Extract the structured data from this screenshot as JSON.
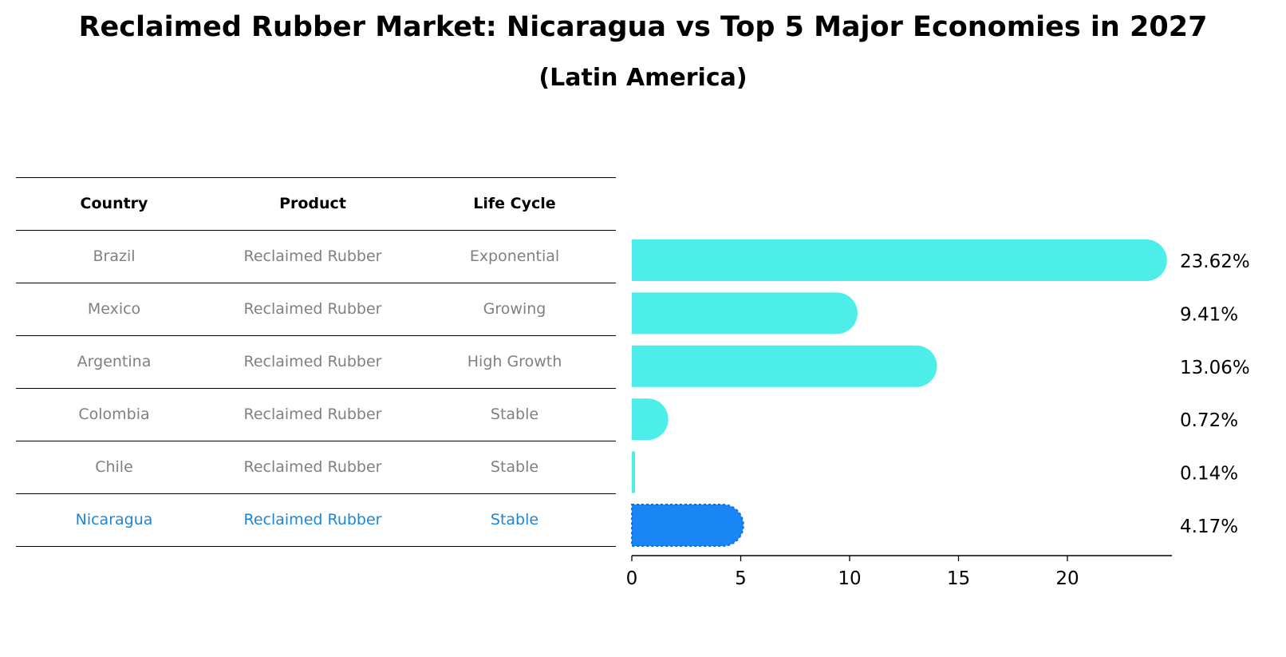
{
  "title": "Reclaimed Rubber Market: Nicaragua vs Top 5 Major Economies in 2027",
  "subtitle": "(Latin America)",
  "table": {
    "headers": [
      "Country",
      "Product",
      "Life Cycle"
    ],
    "rows": [
      [
        "Brazil",
        "Reclaimed Rubber",
        "Exponential"
      ],
      [
        "Mexico",
        "Reclaimed Rubber",
        "Growing"
      ],
      [
        "Argentina",
        "Reclaimed Rubber",
        "High Growth"
      ],
      [
        "Colombia",
        "Reclaimed Rubber",
        "Stable"
      ],
      [
        "Chile",
        "Reclaimed Rubber",
        "Stable"
      ],
      [
        "Nicaragua",
        "Reclaimed Rubber",
        "Stable"
      ]
    ],
    "highlight_row": 5
  },
  "chart_data": {
    "type": "bar",
    "orientation": "horizontal",
    "categories": [
      "Brazil",
      "Mexico",
      "Argentina",
      "Colombia",
      "Chile",
      "Nicaragua"
    ],
    "values": [
      23.62,
      9.41,
      13.06,
      0.72,
      0.14,
      4.17
    ],
    "value_labels": [
      "23.62%",
      "9.41%",
      "13.06%",
      "0.72%",
      "0.14%",
      "4.17%"
    ],
    "xlim": [
      0,
      24.8
    ],
    "xticks": [
      0,
      5,
      10,
      15,
      20
    ],
    "highlight_index": 5,
    "colors": {
      "default": "#4deeea",
      "highlight": "#1a86f5"
    },
    "grid": false
  }
}
